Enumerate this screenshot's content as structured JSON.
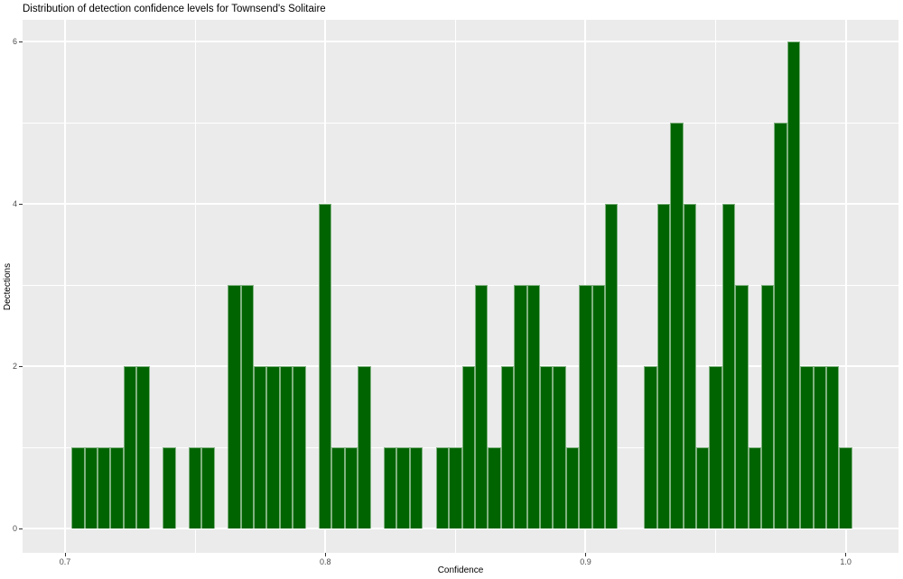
{
  "chart": {
    "title": "Distribution of detection confidence levels for Townsend's Solitaire",
    "xlabel": "Confidence",
    "ylabel": "Dectections"
  },
  "chart_data": {
    "type": "bar",
    "subtype": "histogram",
    "title": "Distribution of detection confidence levels for Townsend's Solitaire",
    "xlabel": "Confidence",
    "ylabel": "Dectections",
    "bin_width": 0.005,
    "bin_centers": [
      0.705,
      0.71,
      0.715,
      0.72,
      0.725,
      0.73,
      0.735,
      0.74,
      0.745,
      0.75,
      0.755,
      0.76,
      0.765,
      0.77,
      0.775,
      0.78,
      0.785,
      0.79,
      0.795,
      0.8,
      0.805,
      0.81,
      0.815,
      0.82,
      0.825,
      0.83,
      0.835,
      0.84,
      0.845,
      0.85,
      0.855,
      0.86,
      0.865,
      0.87,
      0.875,
      0.88,
      0.885,
      0.89,
      0.895,
      0.9,
      0.905,
      0.91,
      0.915,
      0.92,
      0.925,
      0.93,
      0.935,
      0.94,
      0.945,
      0.95,
      0.955,
      0.96,
      0.965,
      0.97,
      0.975,
      0.98,
      0.985,
      0.99,
      0.995,
      1.0
    ],
    "counts": [
      1,
      1,
      1,
      1,
      2,
      2,
      0,
      1,
      0,
      1,
      1,
      0,
      3,
      3,
      2,
      2,
      2,
      2,
      0,
      4,
      1,
      1,
      2,
      0,
      1,
      1,
      1,
      0,
      1,
      1,
      2,
      3,
      1,
      2,
      3,
      3,
      2,
      2,
      1,
      3,
      3,
      4,
      0,
      0,
      2,
      4,
      5,
      4,
      1,
      2,
      4,
      3,
      1,
      3,
      5,
      6,
      2,
      2,
      2,
      1
    ],
    "x_ticks": {
      "values": [
        0.7,
        0.8,
        0.9,
        1.0
      ],
      "labels": [
        "0.7",
        "0.8",
        "0.9",
        "1.0"
      ]
    },
    "y_ticks": {
      "values": [
        0,
        2,
        4,
        6
      ],
      "labels": [
        "0",
        "2",
        "4",
        "6"
      ]
    },
    "x_minor": [
      0.75,
      0.85,
      0.95
    ],
    "y_minor": [
      1,
      3,
      5
    ],
    "xlim": [
      0.68369,
      1.02023
    ],
    "ylim": [
      -0.3,
      6.2667
    ],
    "grid": true,
    "legend": false,
    "colors": {
      "bar_fill": "#006400",
      "bar_edge": "rgba(255,255,255,0.5)",
      "panel_bg": "#EBEBEB",
      "grid": "#FFFFFF",
      "tick_text": "#4D4D4D",
      "tick_mark": "#333333",
      "text": "#000000"
    }
  }
}
